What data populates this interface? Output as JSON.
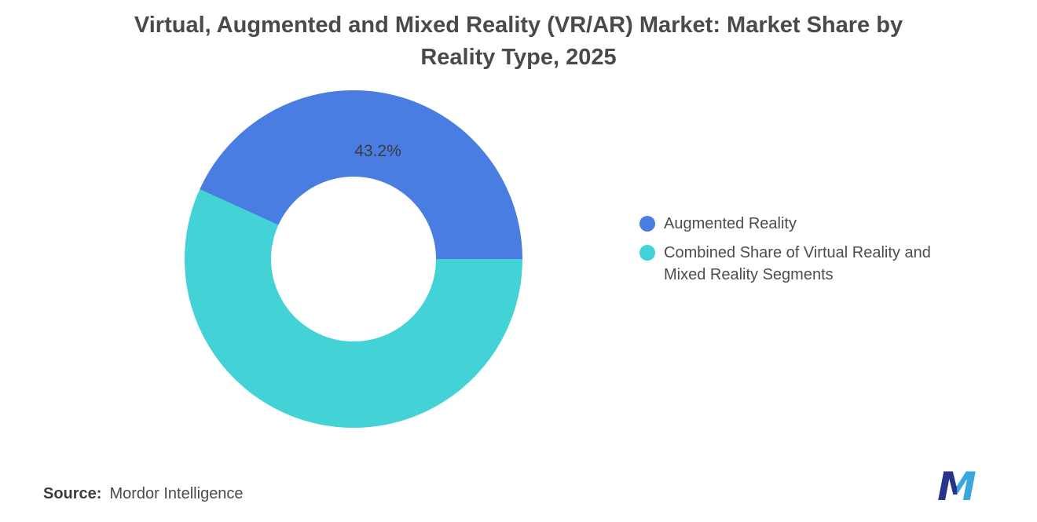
{
  "title": "Virtual, Augmented and Mixed Reality (VR/AR) Market: Market Share by Reality Type, 2025",
  "chart_data": {
    "type": "pie",
    "subtype": "donut",
    "title": "Virtual, Augmented and Mixed Reality (VR/AR) Market: Market Share by Reality Type, 2025",
    "categories": [
      "Augmented Reality",
      "Combined Share of Virtual Reality and Mixed Reality Segments"
    ],
    "values": [
      43.2,
      56.8
    ],
    "colors": [
      "#4a7de2",
      "#43d2d6"
    ],
    "slice_label": "43.2%",
    "legend_position": "right",
    "donut_hole_ratio": 0.49,
    "start_angle_deg": -65.5
  },
  "legend": {
    "items": [
      {
        "label": "Augmented Reality",
        "color": "#4a7de2"
      },
      {
        "label": "Combined Share of Virtual Reality and Mixed Reality Segments",
        "color": "#43d2d6"
      }
    ]
  },
  "footer": {
    "source_label": "Source:",
    "source_value": "Mordor Intelligence"
  },
  "logo": {
    "letter": "M",
    "color_left": "#27348b",
    "color_right": "#38a8dc"
  }
}
